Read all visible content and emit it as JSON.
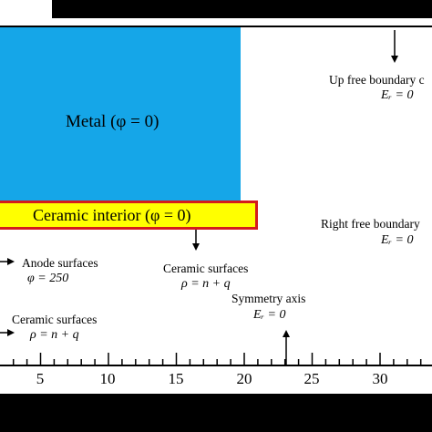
{
  "regions": {
    "metal_label": "Metal (φ = 0)",
    "ceramic_label": "Ceramic interior (φ = 0)",
    "metal_color": "#15a6e8",
    "ceramic_color": "#ffff00",
    "ceramic_border_color": "#d41c1c"
  },
  "annotations": {
    "up_boundary": {
      "title": "Up free boundary c",
      "eq": "Eᵣ = 0"
    },
    "right_boundary": {
      "title": "Right free boundary",
      "eq": "Eᵣ = 0"
    },
    "anode": {
      "title": "Anode surfaces",
      "eq": "φ = 250"
    },
    "ceramic_surfaces_1": {
      "title": "Ceramic surfaces",
      "eq": "ρ = n + q"
    },
    "ceramic_surfaces_2": {
      "title": "Ceramic surfaces",
      "eq": "ρ = n + q"
    },
    "symmetry": {
      "title": "Symmetry axis",
      "eq": "Eᵣ = 0"
    }
  },
  "axis": {
    "tick_labels": [
      "5",
      "10",
      "15",
      "20",
      "25",
      "30"
    ]
  }
}
